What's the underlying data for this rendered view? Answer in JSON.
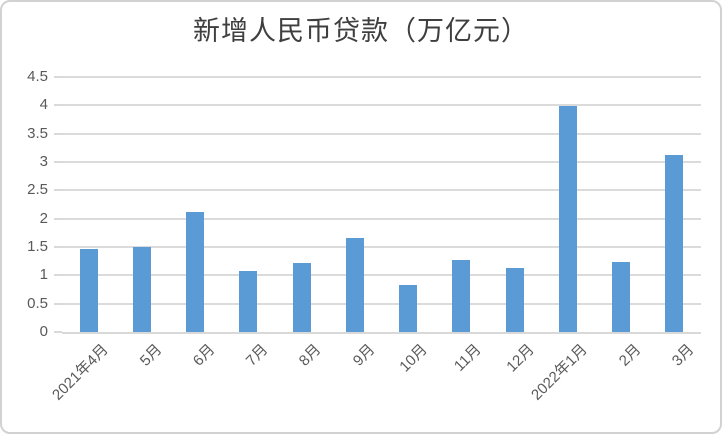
{
  "chart_data": {
    "type": "bar",
    "title": "新增人民币贷款（万亿元）",
    "categories": [
      "2021年4月",
      "5月",
      "6月",
      "7月",
      "8月",
      "9月",
      "10月",
      "11月",
      "12月",
      "2022年1月",
      "2月",
      "3月"
    ],
    "values": [
      1.47,
      1.5,
      2.12,
      1.08,
      1.22,
      1.66,
      0.83,
      1.27,
      1.13,
      3.98,
      1.23,
      3.13
    ],
    "xlabel": "",
    "ylabel": "",
    "ylim": [
      0,
      4.5
    ],
    "ytick_step": 0.5,
    "ytick_labels": [
      "0",
      "0.5",
      "1",
      "1.5",
      "2",
      "2.5",
      "3",
      "3.5",
      "4",
      "4.5"
    ],
    "grid": true,
    "legend": "none",
    "colors": {
      "bar": "#5B9BD5",
      "gridline": "#DBDBDB",
      "axis_line": "#D9D9D9",
      "tick": "#D9D9D9",
      "axis_label": "#595959",
      "title": "#3F3F3F",
      "background": "#FFFFFF",
      "frame_border": "#D2D2D2"
    }
  }
}
